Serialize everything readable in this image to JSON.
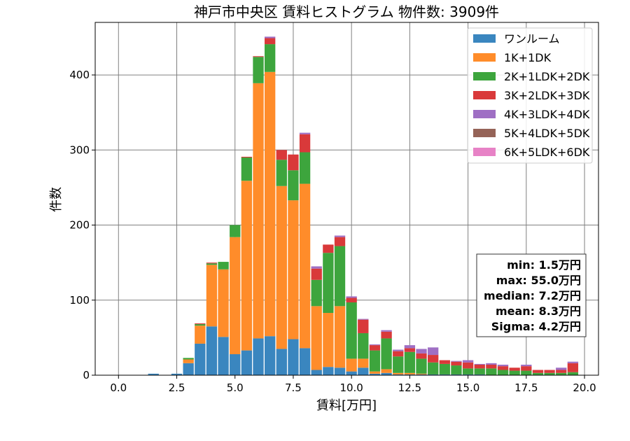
{
  "chart_data": {
    "type": "bar",
    "stacked": true,
    "title": "神戸市中央区 賃料ヒストグラム  物件数: 3909件",
    "xlabel": "賃料[万円]",
    "ylabel": "件数",
    "xlim": [
      -1.0,
      20.6
    ],
    "ylim": [
      0,
      470
    ],
    "xticks": [
      0.0,
      2.5,
      5.0,
      7.5,
      10.0,
      12.5,
      15.0,
      17.5,
      20.0
    ],
    "xtick_labels": [
      "0.0",
      "2.5",
      "5.0",
      "7.5",
      "10.0",
      "12.5",
      "15.0",
      "17.5",
      "20.0"
    ],
    "yticks": [
      0,
      100,
      200,
      300,
      400
    ],
    "ytick_labels": [
      "0",
      "100",
      "200",
      "300",
      "400"
    ],
    "grid": true,
    "legend_position": "top-right",
    "bin_width": 0.5,
    "bin_centers": [
      1.5,
      2.5,
      3.0,
      3.5,
      4.0,
      4.5,
      5.0,
      5.5,
      6.0,
      6.5,
      7.0,
      7.5,
      8.0,
      8.5,
      9.0,
      9.5,
      10.0,
      10.5,
      11.0,
      11.5,
      12.0,
      12.5,
      13.0,
      13.5,
      14.0,
      14.5,
      15.0,
      15.5,
      16.0,
      16.5,
      17.0,
      17.5,
      18.0,
      18.5,
      19.0,
      19.5
    ],
    "series": [
      {
        "name": "ワンルーム",
        "color": "#3a86bf",
        "values": [
          2,
          2,
          16,
          42,
          65,
          51,
          28,
          33,
          49,
          52,
          35,
          48,
          36,
          7,
          11,
          10,
          5,
          10,
          2,
          3,
          1,
          1,
          1,
          1,
          1,
          1,
          1,
          1,
          0,
          0,
          0,
          0,
          0,
          0,
          0,
          0
        ]
      },
      {
        "name": "1K+1DK",
        "color": "#ff8c2a",
        "values": [
          0,
          0,
          5,
          24,
          82,
          90,
          156,
          226,
          340,
          352,
          217,
          185,
          219,
          85,
          72,
          82,
          17,
          12,
          3,
          5,
          2,
          2,
          1,
          0,
          0,
          0,
          0,
          0,
          0,
          0,
          0,
          0,
          0,
          0,
          0,
          0
        ]
      },
      {
        "name": "2K+1LDK+2DK",
        "color": "#3da53d",
        "values": [
          0,
          0,
          2,
          2,
          2,
          10,
          16,
          31,
          35,
          37,
          35,
          40,
          42,
          35,
          80,
          80,
          75,
          34,
          28,
          41,
          22,
          28,
          20,
          16,
          14,
          12,
          8,
          8,
          9,
          7,
          6,
          6,
          3,
          3,
          3,
          4
        ]
      },
      {
        "name": "3K+2LDK+3DK",
        "color": "#d9393a",
        "values": [
          0,
          0,
          0,
          1,
          1,
          0,
          0,
          1,
          1,
          8,
          13,
          21,
          24,
          15,
          11,
          12,
          6,
          18,
          7,
          9,
          7,
          5,
          7,
          10,
          5,
          5,
          8,
          5,
          5,
          5,
          4,
          6,
          4,
          4,
          4,
          12
        ]
      },
      {
        "name": "4K+3LDK+4DK",
        "color": "#9f6fc4",
        "values": [
          0,
          0,
          0,
          0,
          0,
          0,
          0,
          0,
          0,
          2,
          0,
          0,
          2,
          3,
          0,
          2,
          2,
          1,
          1,
          2,
          2,
          4,
          6,
          10,
          0,
          1,
          3,
          1,
          2,
          2,
          0,
          2,
          0,
          0,
          3,
          2
        ]
      },
      {
        "name": "5K+4LDK+5DK",
        "color": "#956357",
        "values": [
          0,
          0,
          0,
          0,
          0,
          0,
          0,
          0,
          0,
          0,
          0,
          0,
          0,
          0,
          0,
          0,
          0,
          0,
          0,
          0,
          0,
          0,
          0,
          0,
          0,
          0,
          0,
          0,
          0,
          0,
          0,
          0,
          0,
          0,
          0,
          0
        ]
      },
      {
        "name": "6K+5LDK+6DK",
        "color": "#e782c6",
        "values": [
          0,
          0,
          0,
          0,
          0,
          0,
          0,
          0,
          0,
          0,
          0,
          0,
          0,
          0,
          0,
          0,
          0,
          0,
          0,
          0,
          0,
          0,
          0,
          0,
          0,
          0,
          0,
          0,
          0,
          0,
          0,
          0,
          0,
          0,
          0,
          0
        ]
      }
    ],
    "stats_box": [
      "min: 1.5万円",
      "max: 55.0万円",
      "median: 7.2万円",
      "mean: 8.3万円",
      "Sigma: 4.2万円"
    ]
  }
}
